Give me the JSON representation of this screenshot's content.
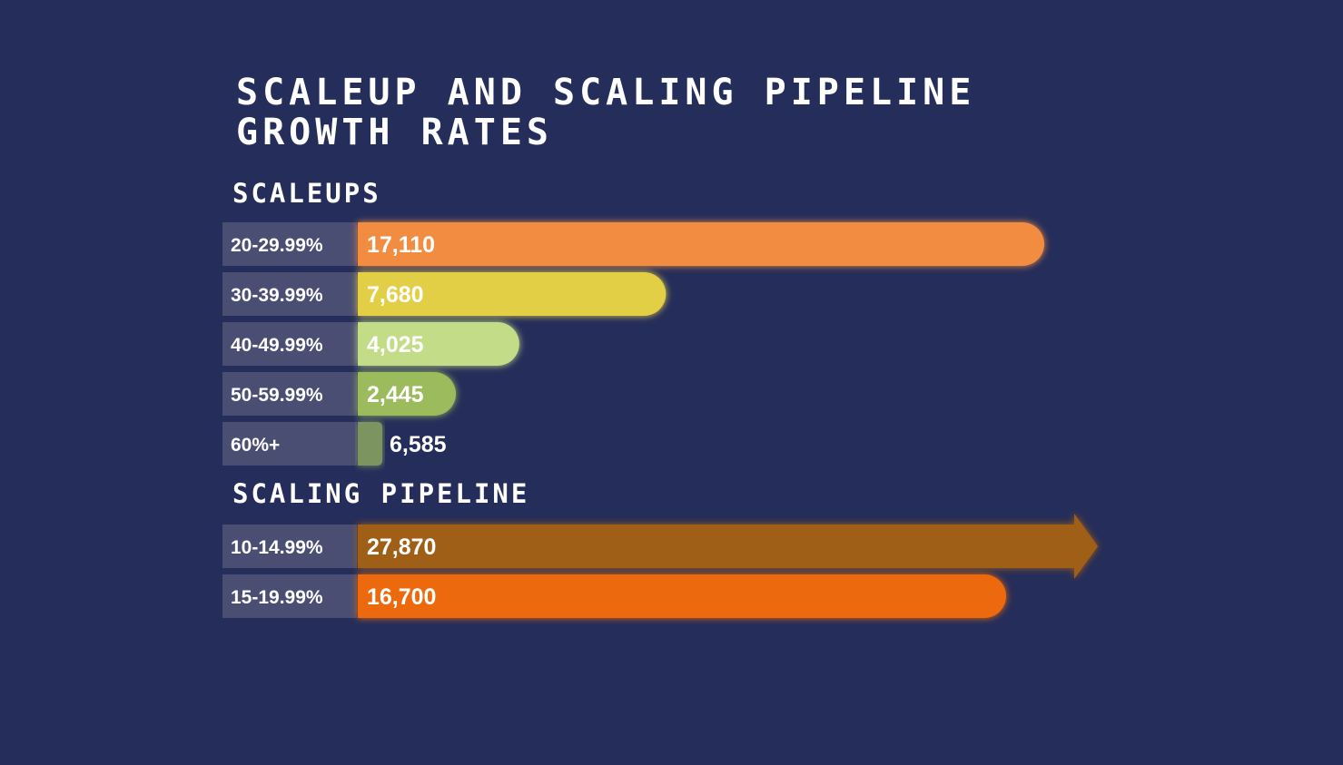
{
  "title_line1": "SCALEUP AND SCALING PIPELINE",
  "title_line2": "GROWTH RATES",
  "chart_data": [
    {
      "type": "bar",
      "orientation": "horizontal",
      "title": "SCALEUPS",
      "categories": [
        "20-29.99%",
        "30-39.99%",
        "40-49.99%",
        "50-59.99%",
        "60%+"
      ],
      "values": [
        17110,
        7680,
        4025,
        2445,
        6585
      ],
      "value_labels": [
        "17,110",
        "7,680",
        "4,025",
        "2,445",
        "6,585"
      ],
      "colors": [
        "#f28c3f",
        "#e3cf45",
        "#c2dc88",
        "#9bbb5c",
        "#7c9461"
      ]
    },
    {
      "type": "bar",
      "orientation": "horizontal",
      "title": "SCALING PIPELINE",
      "categories": [
        "10-14.99%",
        "15-19.99%"
      ],
      "values": [
        27870,
        16700
      ],
      "value_labels": [
        "27,870",
        "16,700"
      ],
      "colors": [
        "#a05f17",
        "#ec6a08"
      ]
    }
  ],
  "colors": {
    "background": "#252d5a",
    "label_box": "#4b4e73",
    "text": "#ffffff"
  }
}
